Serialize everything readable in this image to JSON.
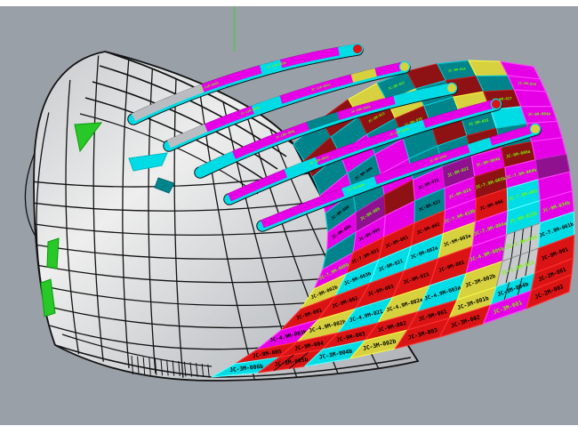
{
  "scene": {
    "background": "#ffffff",
    "viewport_color": "#9aa0a8",
    "margin_color": "#ffffff",
    "axis_color": "#44cc44",
    "wireframe_color": "#131313",
    "hull_light": "#eeeeee",
    "hull_mid": "#c7cacd",
    "hull_dark": "#aeb2b7"
  },
  "palette": {
    "M": "#e600e6",
    "C": "#00dce6",
    "R": "#da1414",
    "DR": "#8e1113",
    "T": "#00848c",
    "Y": "#d7d140",
    "P": "#8f1190",
    "GL": "#c8cbce",
    "GN": "#28c828",
    "GY": "#b9bdc2"
  },
  "borders": {
    "M": "#ff40ff",
    "C": "#55ffff",
    "R": "#ff3030",
    "DR": "#c41a1a",
    "T": "#00c8d2",
    "Y": "#f8f840",
    "P": "#c324c3",
    "GL": "#8f9296",
    "GN": "#00ff00",
    "GY": "#222222"
  },
  "text_colors": {
    "k": "#000000",
    "g": "#77f800",
    "w": "#ffffff"
  },
  "grid": {
    "rows": [
      [
        {
          "c": "T"
        },
        {
          "c": "DR",
          "l": "JC-9M-013",
          "tc": "g"
        },
        {
          "c": "Y"
        },
        {
          "c": "T",
          "l": "JC-9M-012",
          "tc": "g"
        },
        {
          "c": "DR"
        },
        {
          "c": "T",
          "l": "JC-9M-014",
          "tc": "g"
        },
        {
          "c": "Y"
        },
        {
          "c": "M"
        }
      ],
      [
        {
          "c": "DR"
        },
        {
          "c": "T"
        },
        {
          "c": "DR",
          "l": "JC-9M-011",
          "tc": "g"
        },
        {
          "c": "Y"
        },
        {
          "c": "T",
          "l": "JC-9M-015",
          "tc": "g"
        },
        {
          "c": "DR"
        },
        {
          "c": "T"
        },
        {
          "c": "M",
          "l": "JC-9M-016",
          "tc": "g"
        }
      ],
      [
        {
          "c": "T"
        },
        {
          "c": "M"
        },
        {
          "c": "T"
        },
        {
          "c": "DR",
          "l": "JC-9M-010",
          "tc": "g"
        },
        {
          "c": "T"
        },
        {
          "c": "Y"
        },
        {
          "c": "DR",
          "l": "JC-9M-017",
          "tc": "g"
        },
        {
          "c": "M"
        }
      ],
      [
        {
          "c": "M"
        },
        {
          "c": "T",
          "l": "JC-9M-009",
          "tc": "k"
        },
        {
          "c": "M"
        },
        {
          "c": "T"
        },
        {
          "c": "DR"
        },
        {
          "c": "T",
          "l": "JC-9M-018",
          "tc": "g"
        },
        {
          "c": "C"
        },
        {
          "c": "M",
          "l": "JC-9M-004a",
          "tc": "g"
        }
      ],
      [
        {
          "c": "T",
          "l": "JC-9M-008",
          "tc": "k"
        },
        {
          "c": "T"
        },
        {
          "c": "M",
          "l": "JC-9M-007",
          "tc": "g"
        },
        {
          "c": "T",
          "l": "JC-9M-019",
          "tc": "k"
        },
        {
          "c": "T"
        },
        {
          "c": "DR",
          "l": "JC-9M-020",
          "tc": "g"
        },
        {
          "c": "T",
          "l": "JC-9M-005a",
          "tc": "g"
        },
        {
          "c": "M"
        }
      ],
      [
        {
          "c": "M",
          "l": "JC-9M-006",
          "tc": "k"
        },
        {
          "c": "P",
          "l": "JC-9M-005",
          "tc": "g"
        },
        {
          "c": "DR"
        },
        {
          "c": "M",
          "l": "JC-9M-021",
          "tc": "k"
        },
        {
          "c": "P",
          "l": "JC-9M-022",
          "tc": "g"
        },
        {
          "c": "M",
          "l": "JC-9M-004b",
          "tc": "g"
        },
        {
          "c": "DR",
          "l": "JC-9M-006a",
          "tc": "g"
        },
        {
          "c": "M"
        }
      ],
      [
        {
          "c": "T"
        },
        {
          "c": "M",
          "l": "JC-9M-004",
          "tc": "k"
        },
        {
          "c": "M"
        },
        {
          "c": "T",
          "l": "JC-9M-023",
          "tc": "k"
        },
        {
          "c": "M",
          "l": "JC-9M-024",
          "tc": "g"
        },
        {
          "c": "DR",
          "l": "JC-7.9M-005b",
          "tc": "g"
        },
        {
          "c": "M",
          "l": "JC-7.9M-004b",
          "tc": "g"
        },
        {
          "c": "P"
        }
      ],
      [
        {
          "c": "M",
          "l": "JC-7.9M-006b",
          "tc": "g"
        },
        {
          "c": "R",
          "l": "JC-7.9M-021",
          "tc": "k"
        },
        {
          "c": "R",
          "l": "JC-9M-001",
          "tc": "k"
        },
        {
          "c": "R",
          "l": "JC-9M-002",
          "tc": "k"
        },
        {
          "c": "M",
          "l": "JC-7.9M-010b",
          "tc": "g"
        },
        {
          "c": "R",
          "l": "JC-9M-006",
          "tc": "k"
        },
        {
          "c": "C",
          "l": "JC-7.9M-001",
          "tc": "g"
        },
        {
          "c": "M"
        }
      ],
      [
        {
          "c": "Y",
          "l": "JC-9M-002b",
          "tc": "k"
        },
        {
          "c": "C",
          "l": "JC-9M-003b",
          "tc": "k"
        },
        {
          "c": "C",
          "l": "JC-9M-021",
          "tc": "k"
        },
        {
          "c": "C",
          "l": "JC-9M-002a",
          "tc": "k"
        },
        {
          "c": "Y",
          "l": "JC-9M-003a",
          "tc": "k"
        },
        {
          "c": "M",
          "l": "JC-7.9M-004a",
          "tc": "g"
        },
        {
          "c": "C",
          "l": "JC-9M-013b",
          "tc": "g"
        },
        {
          "c": "M",
          "l": "JC-9M-034b",
          "tc": "g"
        }
      ],
      [
        {
          "c": "R",
          "l": "JC-9M-001",
          "tc": "k"
        },
        {
          "c": "R",
          "l": "JC-9M-002",
          "tc": "k"
        },
        {
          "c": "R",
          "l": "JC-9M-003",
          "tc": "k"
        },
        {
          "c": "R",
          "l": "JC-9M-021",
          "tc": "k"
        },
        {
          "c": "R",
          "l": "JC-9M-001",
          "tc": "k"
        },
        {
          "c": "M",
          "l": "JC-4.9M-005b",
          "tc": "g"
        },
        {
          "c": "GL",
          "v": "glass",
          "l": "JC-2.9M-026",
          "tc": "g"
        },
        {
          "c": "C",
          "l": "JC-7.9M-001b",
          "tc": "k"
        }
      ],
      [
        {
          "c": "M",
          "l": "JC-4.9M-003b",
          "tc": "k"
        },
        {
          "c": "Y",
          "l": "JC-4.9M-002b",
          "tc": "k"
        },
        {
          "c": "C",
          "l": "JC-4.9M-021",
          "tc": "k"
        },
        {
          "c": "Y",
          "l": "JC-4.9M-002a",
          "tc": "k"
        },
        {
          "c": "C",
          "l": "JC-4.9M-003a",
          "tc": "k"
        },
        {
          "c": "Y",
          "l": "JC-3M-002b",
          "tc": "k"
        },
        {
          "c": "GL",
          "v": "glass",
          "l": "JC-2.9M-021",
          "tc": "g"
        },
        {
          "c": "R",
          "l": "JC-9M-001",
          "tc": "k"
        }
      ],
      [
        {
          "c": "R",
          "l": "JC-9M-005",
          "tc": "k"
        },
        {
          "c": "R",
          "l": "JC-9M-004",
          "tc": "k"
        },
        {
          "c": "R",
          "l": "JC-9M-003",
          "tc": "k"
        },
        {
          "c": "R",
          "l": "JC-9M-002",
          "tc": "k"
        },
        {
          "c": "R",
          "l": "JC-9M-001",
          "tc": "k"
        },
        {
          "c": "Y",
          "l": "JC-3M-001b",
          "tc": "k"
        },
        {
          "c": "C",
          "v": "vlines",
          "l": "JC-3M-004b",
          "tc": "k"
        },
        {
          "c": "R",
          "l": "JC-2M-001",
          "tc": "k"
        }
      ],
      [
        {
          "c": "C",
          "l": "JC-3M-006b",
          "tc": "k"
        },
        {
          "c": "R",
          "v": "vlines",
          "l": "JC-3M-005b",
          "tc": "k"
        },
        {
          "c": "C",
          "l": "JC-3M-004b",
          "tc": "k"
        },
        {
          "c": "Y",
          "l": "JC-3M-002b",
          "tc": "k"
        },
        {
          "c": "R",
          "l": "JC-3M-003",
          "tc": "k"
        },
        {
          "c": "R",
          "l": "JC-3M-002",
          "tc": "k"
        },
        {
          "c": "M",
          "l": "JC-3M-001",
          "tc": "g"
        },
        {
          "c": "R",
          "l": "JC-2M-002",
          "tc": "k"
        }
      ]
    ]
  },
  "fins": [
    {
      "name": "fin-1",
      "tip": "R",
      "labels": [
        "JC-11M-004b",
        "JC-11M-003b"
      ],
      "segments": [
        {
          "c": "GY",
          "w": 0.32
        },
        {
          "c": "M",
          "w": 0.26
        },
        {
          "c": "C",
          "w": 0.09
        },
        {
          "c": "M",
          "w": 0.25
        },
        {
          "c": "C",
          "w": 0.08
        }
      ]
    },
    {
      "name": "fin-2",
      "tip": "Y",
      "labels": [
        "JC-11M-002b",
        "JC-11M-001b"
      ],
      "segments": [
        {
          "c": "GY",
          "w": 0.16
        },
        {
          "c": "M",
          "w": 0.2
        },
        {
          "c": "C",
          "w": 0.12
        },
        {
          "c": "M",
          "w": 0.3
        },
        {
          "c": "Y",
          "w": 0.1
        },
        {
          "c": "M",
          "w": 0.12
        }
      ]
    },
    {
      "name": "fin-3",
      "tip": "Y",
      "labels": [
        "JC-10M-004b",
        "JC-10M-002b"
      ],
      "segments": [
        {
          "c": "C",
          "w": 0.14
        },
        {
          "c": "M",
          "w": 0.3
        },
        {
          "c": "T",
          "w": 0.12
        },
        {
          "c": "M",
          "w": 0.22
        },
        {
          "c": "C",
          "w": 0.22
        }
      ]
    },
    {
      "name": "fin-4",
      "tip": "R",
      "labels": [
        "JC-10M-001b",
        "JC-10M-003b"
      ],
      "segments": [
        {
          "c": "M",
          "w": 0.22
        },
        {
          "c": "C",
          "w": 0.12
        },
        {
          "c": "M",
          "w": 0.3
        },
        {
          "c": "C",
          "w": 0.1
        },
        {
          "c": "M",
          "w": 0.26
        }
      ]
    },
    {
      "name": "fin-5",
      "tip": "Y",
      "labels": [
        "JC-9M-004b",
        "JC-9M-034b"
      ],
      "segments": [
        {
          "c": "M",
          "w": 0.3
        },
        {
          "c": "C",
          "w": 0.12
        },
        {
          "c": "M",
          "w": 0.34
        },
        {
          "c": "C",
          "w": 0.08
        },
        {
          "c": "M",
          "w": 0.16
        }
      ]
    }
  ],
  "accents": {
    "green_panel_color": "#28c828",
    "cyan_sliver_color": "#00dce6",
    "teal_sliver_color": "#00848c"
  }
}
